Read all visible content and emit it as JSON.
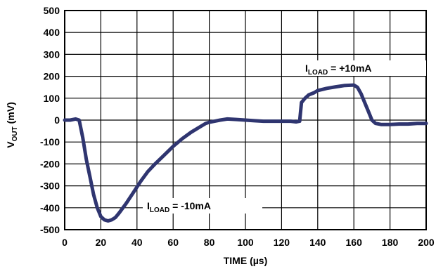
{
  "chart_data": {
    "type": "line",
    "xlabel": "TIME (µs)",
    "ylabel_main": "V",
    "ylabel_sub": "OUT",
    "ylabel_tail": " (mV)",
    "xlim": [
      0,
      200
    ],
    "ylim": [
      -500,
      500
    ],
    "x_ticks": [
      0,
      20,
      40,
      60,
      80,
      100,
      120,
      140,
      160,
      180,
      200
    ],
    "y_ticks": [
      500,
      400,
      300,
      200,
      100,
      0,
      -100,
      -200,
      -300,
      -400,
      -500
    ],
    "grid": true,
    "line_color": "#2f3570",
    "series": [
      {
        "x": [
          0,
          3,
          6,
          8,
          10,
          12,
          14,
          16,
          18,
          20,
          22,
          24,
          26,
          28,
          30,
          34,
          38,
          42,
          46,
          50,
          55,
          60,
          65,
          70,
          75,
          78,
          80,
          83,
          86,
          90,
          95,
          100,
          105,
          110,
          115,
          120,
          125,
          128,
          130,
          131,
          133,
          135,
          138,
          140,
          145,
          150,
          155,
          160,
          162,
          164,
          166,
          168,
          170,
          172,
          175,
          180,
          185,
          190,
          195,
          200
        ],
        "y": [
          0,
          0,
          5,
          0,
          -80,
          -180,
          -260,
          -340,
          -400,
          -440,
          -455,
          -460,
          -455,
          -445,
          -425,
          -380,
          -330,
          -280,
          -235,
          -200,
          -160,
          -120,
          -85,
          -55,
          -30,
          -15,
          -10,
          -5,
          0,
          5,
          3,
          0,
          -3,
          -5,
          -5,
          -5,
          -5,
          -8,
          -5,
          80,
          100,
          115,
          125,
          135,
          145,
          152,
          158,
          160,
          150,
          120,
          80,
          40,
          0,
          -15,
          -20,
          -20,
          -18,
          -18,
          -15,
          -15
        ]
      }
    ],
    "annotations": [
      {
        "main": "I",
        "sub": "LOAD",
        "tail": " = +10mA"
      },
      {
        "main": "I",
        "sub": "LOAD",
        "tail": " = -10mA"
      }
    ]
  }
}
